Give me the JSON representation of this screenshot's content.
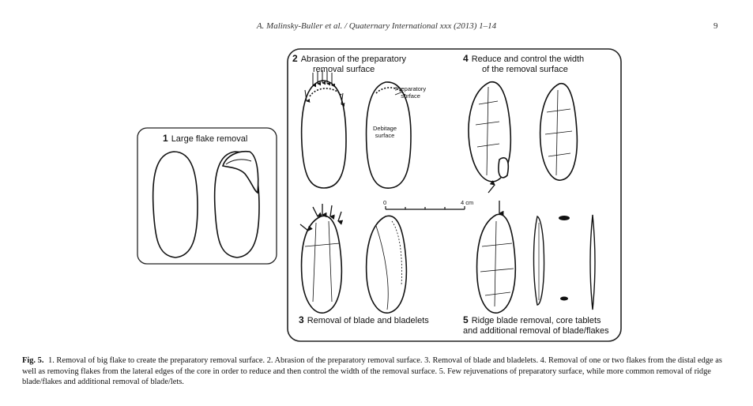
{
  "header": {
    "running_head": "A. Malinsky-Buller et al. / Quaternary International xxx (2013) 1–14",
    "page_number": "9"
  },
  "figure": {
    "panels": [
      {
        "number": "1",
        "title": "Large flake removal"
      },
      {
        "number": "2",
        "title": "Abrasion of the preparatory",
        "title_line2": "removal surface"
      },
      {
        "number": "3",
        "title": "Removal of blade and bladelets"
      },
      {
        "number": "4",
        "title": "Reduce and control the width",
        "title_line2": "of the removal surface"
      },
      {
        "number": "5",
        "title": "Ridge blade removal, core tablets",
        "title_line2": "and additional removal of blade/flakes"
      }
    ],
    "labels": {
      "preparatory_surface": "Preparatory",
      "preparatory_surface_2": "surface",
      "debitage_surface": "Debitage",
      "debitage_surface_2": "surface"
    },
    "scale": {
      "zero": "0",
      "max": "4 cm"
    }
  },
  "caption": {
    "fig_label": "Fig. 5.",
    "text": "1. Removal of big flake to create the preparatory removal surface. 2. Abrasion of the preparatory removal surface. 3. Removal of blade and bladelets. 4. Removal of one or two flakes from the distal edge as well as removing flakes from the lateral edges of the core in order to reduce and then control the width of the removal surface. 5. Few rejuvenations of preparatory surface, while more common removal of ridge blade/flakes and additional removal of blade/lets."
  }
}
